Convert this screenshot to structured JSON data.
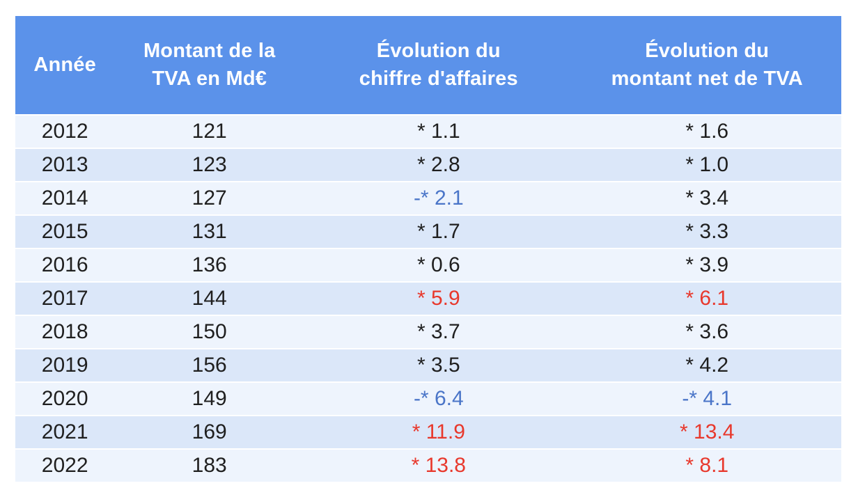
{
  "colors": {
    "header_bg": "#5b92ea",
    "header_text": "#ffffff",
    "row_light": "#eef4fd",
    "row_alt": "#dbe7f9",
    "text_dark": "#1f1f1f",
    "negative_text": "#4a75c8",
    "strong_text": "#e8382c"
  },
  "table": {
    "headers": [
      {
        "id": "annee",
        "label": "Année"
      },
      {
        "id": "montant",
        "label": "Montant de la\nTVA en Md€"
      },
      {
        "id": "evolution_ca",
        "label": "Évolution du\nchiffre d'affaires"
      },
      {
        "id": "evolution_net",
        "label": "Évolution du\nmontant net de TVA"
      }
    ],
    "rows": [
      {
        "year": "2012",
        "tva": "121",
        "evolution_ca": {
          "text": "* 1.1",
          "tone": "normal"
        },
        "evolution_net": {
          "text": "* 1.6",
          "tone": "normal"
        }
      },
      {
        "year": "2013",
        "tva": "123",
        "evolution_ca": {
          "text": "* 2.8",
          "tone": "normal"
        },
        "evolution_net": {
          "text": "* 1.0",
          "tone": "normal"
        }
      },
      {
        "year": "2014",
        "tva": "127",
        "evolution_ca": {
          "text": "-* 2.1",
          "tone": "negative"
        },
        "evolution_net": {
          "text": "* 3.4",
          "tone": "normal"
        }
      },
      {
        "year": "2015",
        "tva": "131",
        "evolution_ca": {
          "text": "* 1.7",
          "tone": "normal"
        },
        "evolution_net": {
          "text": "* 3.3",
          "tone": "normal"
        }
      },
      {
        "year": "2016",
        "tva": "136",
        "evolution_ca": {
          "text": "* 0.6",
          "tone": "normal"
        },
        "evolution_net": {
          "text": "* 3.9",
          "tone": "normal"
        }
      },
      {
        "year": "2017",
        "tva": "144",
        "evolution_ca": {
          "text": "* 5.9",
          "tone": "strong"
        },
        "evolution_net": {
          "text": "* 6.1",
          "tone": "strong"
        }
      },
      {
        "year": "2018",
        "tva": "150",
        "evolution_ca": {
          "text": "* 3.7",
          "tone": "normal"
        },
        "evolution_net": {
          "text": "* 3.6",
          "tone": "normal"
        }
      },
      {
        "year": "2019",
        "tva": "156",
        "evolution_ca": {
          "text": "* 3.5",
          "tone": "normal"
        },
        "evolution_net": {
          "text": "* 4.2",
          "tone": "normal"
        }
      },
      {
        "year": "2020",
        "tva": "149",
        "evolution_ca": {
          "text": "-* 6.4",
          "tone": "negative"
        },
        "evolution_net": {
          "text": "-* 4.1",
          "tone": "negative"
        }
      },
      {
        "year": "2021",
        "tva": "169",
        "evolution_ca": {
          "text": "* 11.9",
          "tone": "strong"
        },
        "evolution_net": {
          "text": "* 13.4",
          "tone": "strong"
        }
      },
      {
        "year": "2022",
        "tva": "183",
        "evolution_ca": {
          "text": "* 13.8",
          "tone": "strong"
        },
        "evolution_net": {
          "text": "* 8.1",
          "tone": "strong"
        }
      }
    ]
  },
  "chart_data": {
    "type": "table",
    "title": "",
    "columns": [
      "Année",
      "Montant de la TVA en Md€",
      "Évolution du chiffre d'affaires",
      "Évolution du montant net de TVA"
    ],
    "rows": [
      [
        2012,
        121,
        1.1,
        1.6
      ],
      [
        2013,
        123,
        2.8,
        1.0
      ],
      [
        2014,
        127,
        -2.1,
        3.4
      ],
      [
        2015,
        131,
        1.7,
        3.3
      ],
      [
        2016,
        136,
        0.6,
        3.9
      ],
      [
        2017,
        144,
        5.9,
        6.1
      ],
      [
        2018,
        150,
        3.7,
        3.6
      ],
      [
        2019,
        156,
        3.5,
        4.2
      ],
      [
        2020,
        149,
        -6.4,
        -4.1
      ],
      [
        2021,
        169,
        11.9,
        13.4
      ],
      [
        2022,
        183,
        13.8,
        8.1
      ]
    ],
    "notes": "Blue cells are decreases (prefixed '-*'), red cells are strong increases, black cells are moderate increases. Evolution values are percentages displayed with an asterisk glyph."
  }
}
